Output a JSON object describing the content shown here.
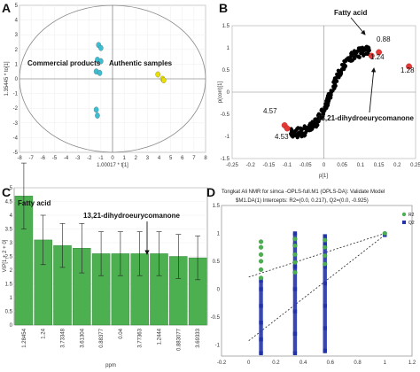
{
  "chart_data": [
    {
      "id": "A",
      "type": "scatter",
      "panel_label": "A",
      "xlabel": "1.00017 * t[1]",
      "ylabel": "1.35445 * to[1]",
      "xlim": [
        -8,
        8
      ],
      "ylim": [
        -5,
        5
      ],
      "xticks": [
        "-8",
        "-7",
        "-6",
        "-5",
        "-4",
        "-3",
        "-2",
        "-1",
        "0",
        "1",
        "2",
        "3",
        "4",
        "5",
        "6",
        "7",
        "8"
      ],
      "yticks": [
        "-5",
        "-4",
        "-3",
        "-2",
        "-1",
        "0",
        "1",
        "2",
        "3",
        "4",
        "5"
      ],
      "groups": [
        {
          "name": "Commercial products",
          "color": "#3bbfd4",
          "points": [
            [
              -1.2,
              2.3
            ],
            [
              -1.0,
              2.1
            ],
            [
              -1.3,
              1.3
            ],
            [
              -1.0,
              1.2
            ],
            [
              -1.4,
              0.5
            ],
            [
              -1.1,
              0.4
            ],
            [
              -1.4,
              -2.1
            ],
            [
              -1.3,
              -2.5
            ]
          ]
        },
        {
          "name": "Authentic samples",
          "color": "#e8e000",
          "points": [
            [
              3.9,
              0.3
            ],
            [
              4.3,
              0.0
            ],
            [
              4.4,
              -0.1
            ]
          ]
        }
      ],
      "ellipse": {
        "rx": 8,
        "ry": 5
      }
    },
    {
      "id": "B",
      "type": "scatter",
      "panel_label": "B",
      "xlabel": "p[1]",
      "ylabel": "p(corr)[1]",
      "xlim": [
        -0.25,
        0.25
      ],
      "ylim": [
        -1.5,
        1.5
      ],
      "xticks": [
        "-0.25",
        "-0.2",
        "-0.15",
        "-0.1",
        "-0.05",
        "0",
        "0.05",
        "0.1",
        "0.15",
        "0.2",
        "0.25"
      ],
      "yticks": [
        "-1.5",
        "-1",
        "-0.5",
        "0",
        "0.5",
        "1",
        "1.5"
      ],
      "annotations": [
        "Fatty acid",
        "13,21-dihydroeurycomanone"
      ],
      "highlighted": [
        {
          "label": "0.88",
          "x": 0.15,
          "y": 0.9
        },
        {
          "label": "1.24",
          "x": 0.13,
          "y": 0.82
        },
        {
          "label": "1.28",
          "x": 0.232,
          "y": 0.58
        },
        {
          "label": "4.57",
          "x": -0.107,
          "y": -0.75
        },
        {
          "label": "4.53",
          "x": -0.1,
          "y": -0.82
        }
      ]
    },
    {
      "id": "C",
      "type": "bar",
      "panel_label": "C",
      "xlabel": "ppm",
      "ylabel": "VIP[1 + 2 + 0]",
      "ylim": [
        0,
        5
      ],
      "yticks": [
        "0",
        "0.5",
        "1",
        "1.5",
        "2",
        "2.5",
        "3",
        "3.5",
        "4",
        "4.5",
        "5"
      ],
      "bar_color": "#4caf50",
      "categories": [
        "1.28454",
        "1.24",
        "3.73348",
        "3.61304",
        "0.88377",
        "0.04",
        "3.77363",
        "1.2444",
        "0.883077",
        "3.69333"
      ],
      "values": [
        4.7,
        3.1,
        2.9,
        2.8,
        2.6,
        2.6,
        2.6,
        2.6,
        2.5,
        2.45
      ],
      "errors": [
        1.2,
        0.9,
        0.8,
        0.9,
        0.8,
        0.8,
        0.8,
        0.8,
        0.8,
        0.8
      ],
      "annotations": [
        "Fatty acid",
        "13,21-dihydroeurycomanone"
      ]
    },
    {
      "id": "D",
      "type": "scatter",
      "panel_label": "D",
      "title_line1": "Tongkat Ali NMR for simca -OPLS-full.M1 (OPLS-DA): Validate Model",
      "title_line2": "$M1.DA(1) Intercepts: R2=(0.0, 0.217), Q2=(0.0, -0.925)",
      "xlim": [
        -0.2,
        1.2
      ],
      "ylim": [
        -1.2,
        1.5
      ],
      "xticks": [
        "-0.2",
        "0",
        "0.2",
        "0.4",
        "0.6",
        "0.8",
        "1",
        "1.2"
      ],
      "yticks": [
        "-1",
        "-0.5",
        "0",
        "0.5",
        "1",
        "1.5"
      ],
      "series": [
        {
          "name": "R2",
          "color": "#4caf50",
          "points": [
            [
              0.09,
              0.2
            ],
            [
              0.09,
              0.35
            ],
            [
              0.09,
              0.5
            ],
            [
              0.09,
              0.62
            ],
            [
              0.09,
              0.75
            ],
            [
              0.09,
              0.85
            ],
            [
              0.34,
              0.3
            ],
            [
              0.34,
              0.48
            ],
            [
              0.34,
              0.62
            ],
            [
              0.34,
              0.78
            ],
            [
              0.34,
              0.9
            ],
            [
              0.56,
              0.45
            ],
            [
              0.56,
              0.6
            ],
            [
              0.56,
              0.75
            ],
            [
              0.56,
              0.88
            ],
            [
              1.0,
              1.0
            ]
          ]
        },
        {
          "name": "Q2",
          "color": "#2233aa",
          "points": [
            [
              0.09,
              -1.15
            ],
            [
              0.09,
              -0.9
            ],
            [
              0.09,
              -0.6
            ],
            [
              0.09,
              -0.3
            ],
            [
              0.09,
              0.0
            ],
            [
              0.09,
              0.15
            ],
            [
              0.34,
              -1.15
            ],
            [
              0.34,
              -0.8
            ],
            [
              0.34,
              -0.4
            ],
            [
              0.34,
              0.0
            ],
            [
              0.34,
              0.4
            ],
            [
              0.34,
              0.8
            ],
            [
              0.34,
              1.0
            ],
            [
              0.56,
              -1.1
            ],
            [
              0.56,
              -0.7
            ],
            [
              0.56,
              -0.3
            ],
            [
              0.56,
              0.1
            ],
            [
              0.56,
              0.4
            ],
            [
              0.56,
              0.8
            ],
            [
              0.56,
              0.95
            ],
            [
              1.0,
              0.97
            ]
          ]
        }
      ]
    }
  ]
}
